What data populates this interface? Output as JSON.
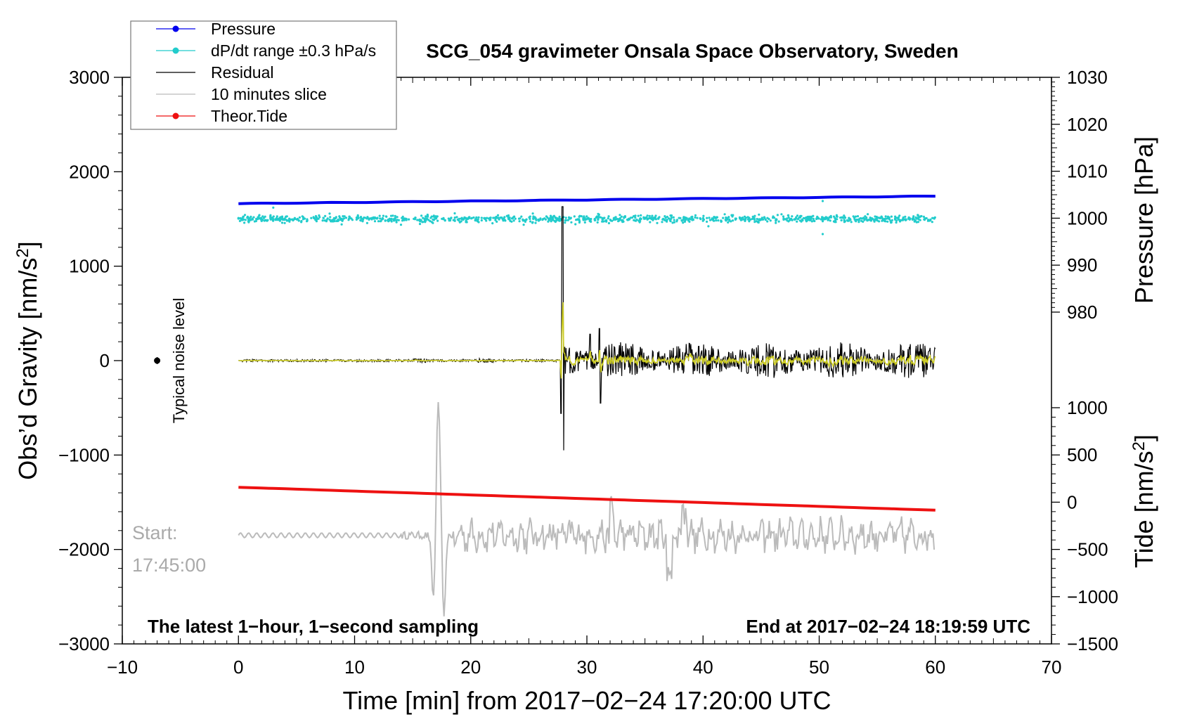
{
  "chart_data": {
    "type": "line",
    "title": "SCG_054 gravimeter Onsala Space Observatory, Sweden",
    "xlabel": "Time [min] from 2017−02−24 17:20:00 UTC",
    "ylabel_left": "Obs’d Gravity [nm/s²]",
    "ylabel_right_pressure": "Pressure [hPa]",
    "ylabel_right_tide": "Tide [nm/s²]",
    "xlim": [
      -10,
      70
    ],
    "ylim": [
      -3000,
      3000
    ],
    "pressure_axis_range": [
      1030,
      980
    ],
    "tide_axis_range": [
      1000,
      -1500
    ],
    "xticks": [
      -10,
      0,
      10,
      20,
      30,
      40,
      50,
      60,
      70
    ],
    "xtick_labels": [
      "−10",
      "0",
      "10",
      "20",
      "30",
      "40",
      "50",
      "60",
      "70"
    ],
    "yticks": [
      -3000,
      -2000,
      -1000,
      0,
      1000,
      2000,
      3000
    ],
    "ytick_labels": [
      "−3000",
      "−2000",
      "−1000",
      "0",
      "1000",
      "2000",
      "3000"
    ],
    "pressure_ticks": [
      980,
      990,
      1000,
      1010,
      1020,
      1030
    ],
    "tide_ticks": [
      -1500,
      -1000,
      -500,
      0,
      500,
      1000
    ],
    "tide_tick_labels": [
      "−1500",
      "−1000",
      "−500",
      "0",
      "500",
      "1000"
    ],
    "legend": [
      {
        "label": "Pressure",
        "color": "#0000ee",
        "marker": true
      },
      {
        "label": "dP/dt range ±0.3 hPa/s",
        "color": "#22cccc",
        "marker": true
      },
      {
        "label": "Residual",
        "color": "#000000",
        "marker": false
      },
      {
        "label": "10 minutes slice",
        "color": "#bbbbbb",
        "marker": false
      },
      {
        "label": "Theor.Tide",
        "color": "#ee1111",
        "marker": true
      }
    ],
    "series": [
      {
        "name": "Pressure",
        "unit": "hPa",
        "color": "#0000ee",
        "x": [
          0,
          60
        ],
        "values": [
          1003.1,
          1004.7
        ]
      },
      {
        "name": "dP/dt range ±0.3 hPa/s",
        "color": "#22cccc",
        "x": [
          0,
          60
        ],
        "baseline_gravity": 1500
      },
      {
        "name": "Residual",
        "unit": "nm/s²",
        "color": "#000000",
        "x": [
          0,
          60
        ],
        "quiet_until": 27.8,
        "spike_time": 27.9,
        "spike_max": 1630,
        "spike_min": -950,
        "noise_after": 150
      },
      {
        "name": "10 minutes slice",
        "color": "#bbbbbb",
        "x": [
          0,
          60
        ],
        "baseline_gravity": -1850,
        "peak_time": 17.2,
        "peak_max": -220,
        "trough_min": -2780
      },
      {
        "name": "Theor.Tide",
        "unit": "nm/s²",
        "color": "#ee1111",
        "x": [
          0,
          60
        ],
        "values": [
          158,
          -85
        ]
      }
    ],
    "annotations": {
      "noise_label": "Typical noise level",
      "noise_x": -7,
      "start_label": "Start:",
      "start_time": "17:45:00",
      "bottom_left": "The latest 1−hour, 1−second sampling",
      "bottom_right": "End at 2017−02−24 18:19:59 UTC"
    },
    "colors": {
      "filtered": "#cccc22"
    }
  }
}
